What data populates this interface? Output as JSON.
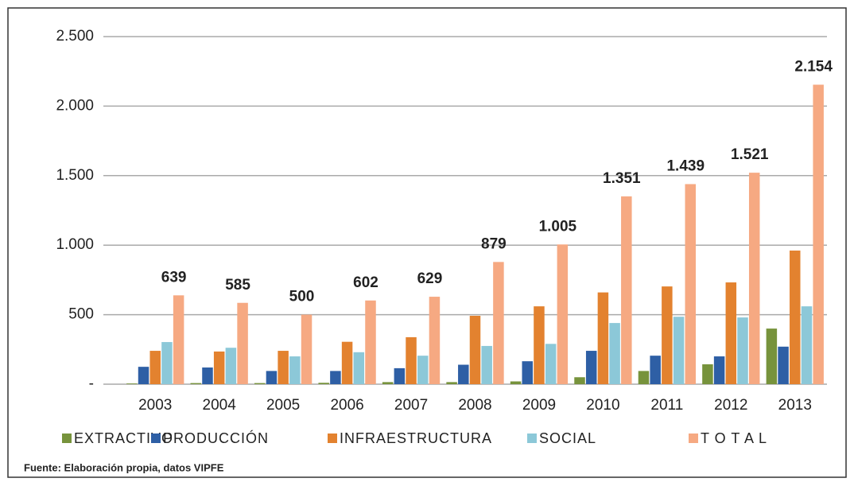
{
  "chart_data": {
    "type": "bar",
    "categories": [
      "2003",
      "2004",
      "2005",
      "2006",
      "2007",
      "2008",
      "2009",
      "2010",
      "2011",
      "2012",
      "2013"
    ],
    "series": [
      {
        "name": "EXTRACTIVO",
        "color": "#77933c",
        "values": [
          5,
          8,
          8,
          10,
          15,
          15,
          20,
          50,
          95,
          143,
          400
        ]
      },
      {
        "name": "PRODUCCIÓN",
        "color": "#2e5fa5",
        "values": [
          125,
          120,
          95,
          95,
          115,
          140,
          165,
          240,
          205,
          200,
          270
        ]
      },
      {
        "name": "INFRAESTRUCTURA",
        "color": "#e3822f",
        "values": [
          240,
          235,
          240,
          305,
          338,
          492,
          560,
          660,
          703,
          732,
          961
        ]
      },
      {
        "name": "SOCIAL",
        "color": "#8cc8d8",
        "values": [
          303,
          262,
          200,
          230,
          205,
          275,
          290,
          440,
          485,
          480,
          560
        ]
      },
      {
        "name": "T O T A L",
        "color": "#f6a982",
        "values": [
          639,
          585,
          500,
          602,
          629,
          879,
          1005,
          1351,
          1439,
          1521,
          2154
        ],
        "value_labels": [
          "639",
          "585",
          "500",
          "602",
          "629",
          "879",
          "1.005",
          "1.351",
          "1.439",
          "1.521",
          "2.154"
        ]
      }
    ],
    "ylim": [
      0,
      2500
    ],
    "yticks": [
      {
        "value": 0,
        "label": "-"
      },
      500,
      {
        "value": 1000,
        "label": "1.000"
      },
      {
        "value": 1500,
        "label": "1.500"
      },
      {
        "value": 2000,
        "label": "2.000"
      },
      {
        "value": 2500,
        "label": "2.500"
      }
    ],
    "grid": true,
    "legend": "bottom",
    "source": "Fuente: Elaboración propia, datos VIPFE"
  }
}
